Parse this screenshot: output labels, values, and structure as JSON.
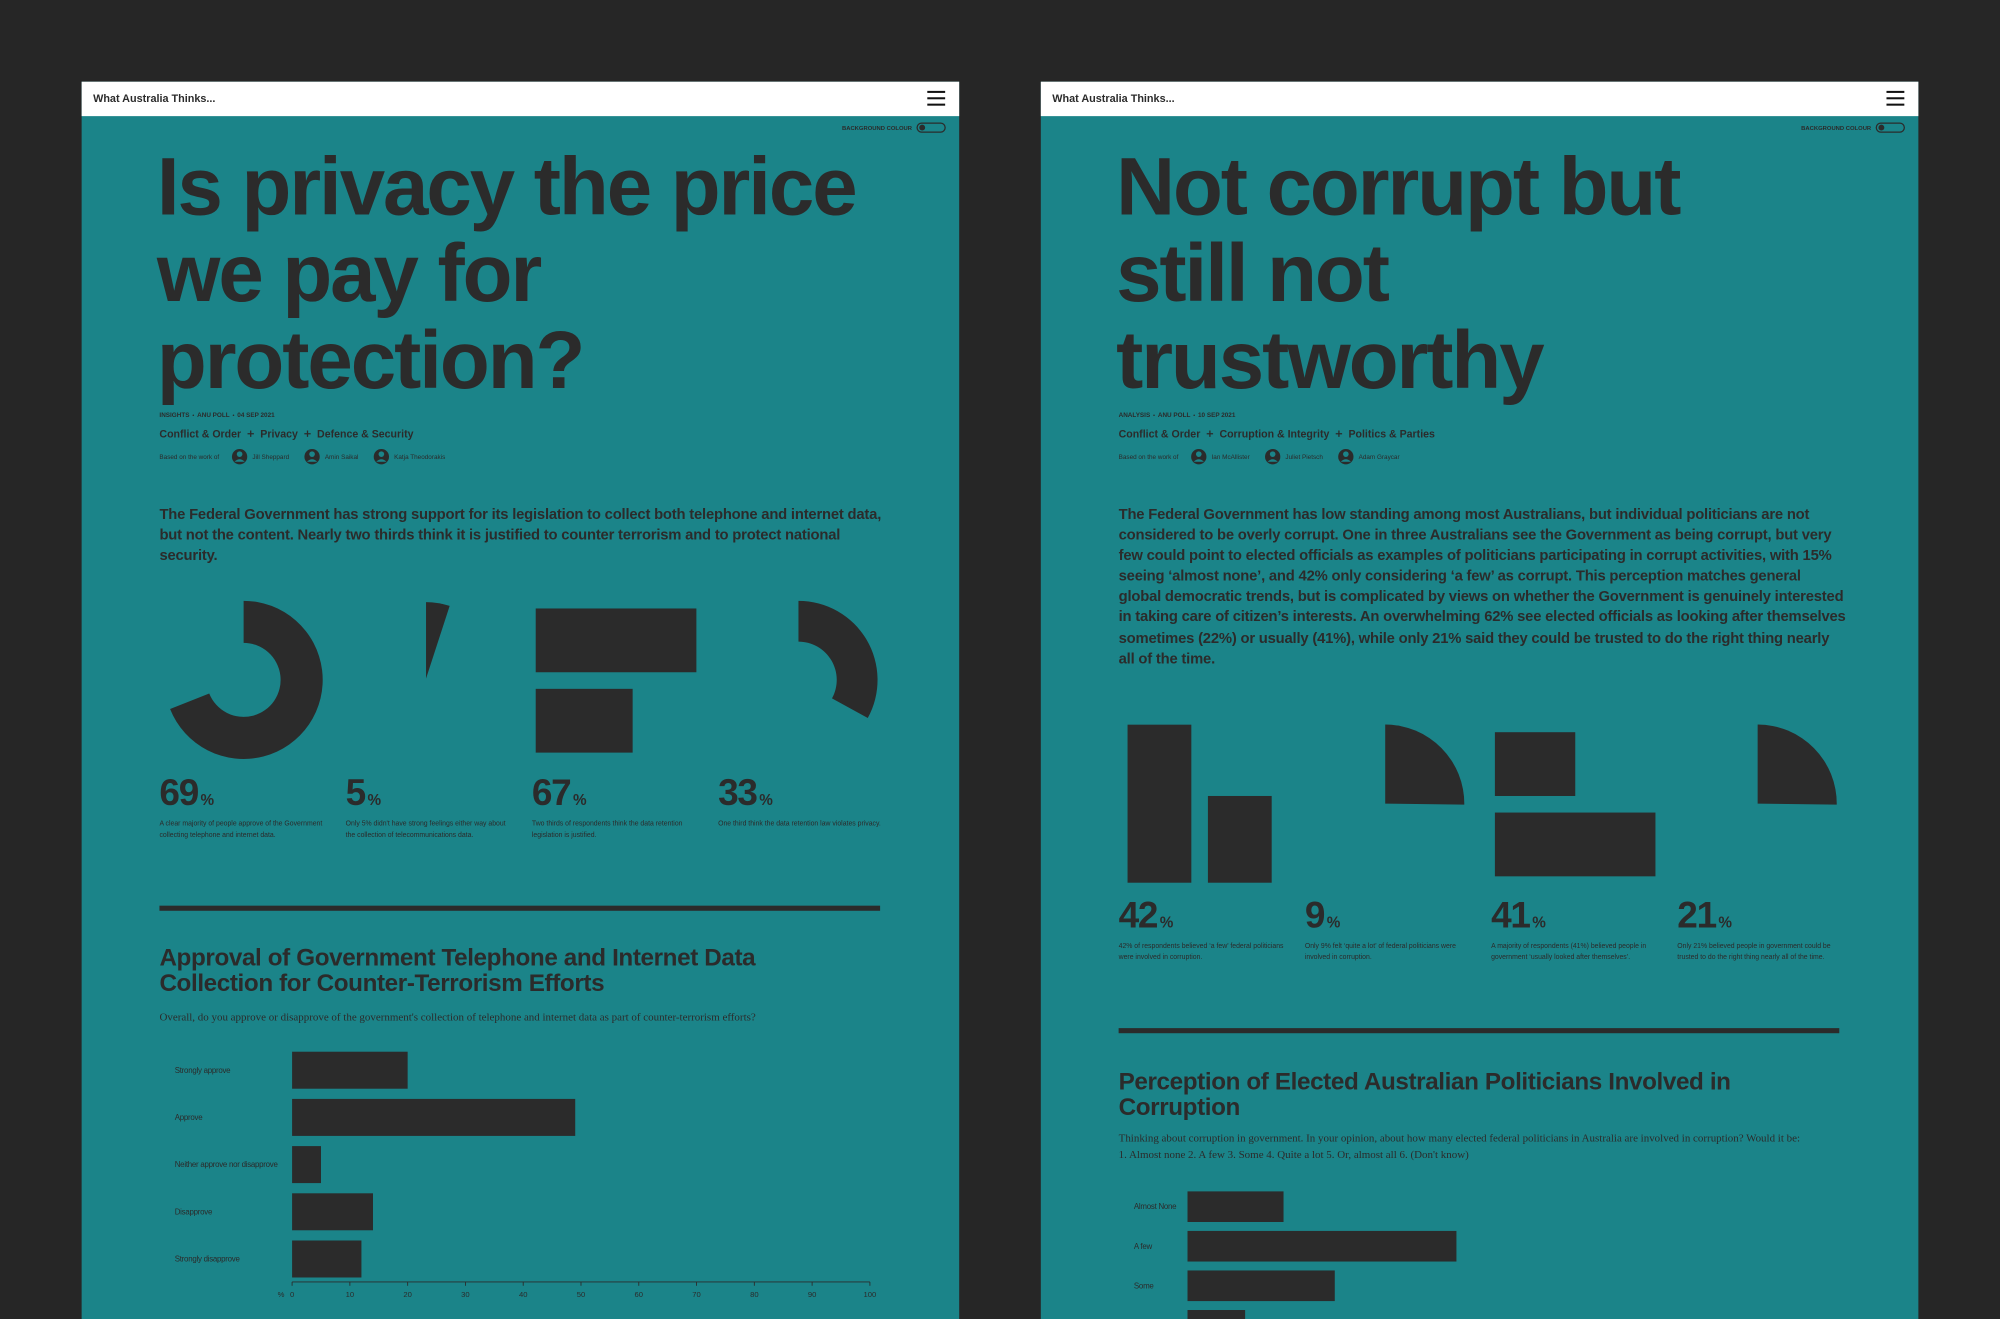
{
  "pages": [
    {
      "brand": "What Australia Thinks...",
      "toggle_label": "BACKGROUND COLOUR",
      "title_lines": [
        "Is privacy the price",
        "we pay for",
        "protection?"
      ],
      "meta": [
        "INSIGHTS",
        "ANU POLL",
        "04 SEP 2021"
      ],
      "tags": [
        "Conflict & Order",
        "Privacy",
        "Defence & Security"
      ],
      "authors_label": "Based on the work of",
      "authors": [
        "Jill Sheppard",
        "Amin Saikal",
        "Katja Theodorakis"
      ],
      "lead": "The Federal Government has strong support for its legislation to collect both telephone and internet data, but not the content. Nearly two thirds think it is justified to counter terrorism and to protect national security.",
      "stats": [
        {
          "value": 69,
          "unit": "%",
          "text": "A clear majority of people approve of the Government collecting telephone and internet data."
        },
        {
          "value": 5,
          "unit": "%",
          "text": "Only 5% didn't have strong feelings either way about the collection of telecommunications data."
        },
        {
          "value": 67,
          "unit": "%",
          "text": "Two thirds of respondents think the data retention legislation is justified."
        },
        {
          "value": 33,
          "unit": "%",
          "text": "One third think the data retention law violates privacy."
        }
      ],
      "chart_data": {
        "type": "bar",
        "orientation": "horizontal",
        "title": "Approval of Government Telephone and Internet Data Collection for Counter-Terrorism Efforts",
        "subtitle": "Overall, do you approve or disapprove of the government's collection of telephone and internet data as part of counter-terrorism efforts?",
        "categories": [
          "Strongly approve",
          "Approve",
          "Neither approve nor disapprove",
          "Disapprove",
          "Strongly disapprove"
        ],
        "values": [
          20,
          49,
          5,
          14,
          12
        ],
        "color": "#2b2b2b",
        "xlabel": "%",
        "xlim": [
          0,
          100
        ],
        "xticks": [
          0,
          10,
          20,
          30,
          40,
          50,
          60,
          70,
          80,
          90,
          100
        ]
      }
    },
    {
      "brand": "What Australia Thinks...",
      "toggle_label": "BACKGROUND COLOUR",
      "title_lines": [
        "Not corrupt but",
        "still not",
        "trustworthy"
      ],
      "meta": [
        "ANALYSIS",
        "ANU POLL",
        "10 SEP 2021"
      ],
      "tags": [
        "Conflict & Order",
        "Corruption & Integrity",
        "Politics & Parties"
      ],
      "authors_label": "Based on the work of",
      "authors": [
        "Ian McAllister",
        "Juliet Pietsch",
        "Adam Graycar"
      ],
      "lead": "The Federal Government has low standing among most Australians, but individual politicians are not considered to be overly corrupt. One in three Australians see the Government as being corrupt, but very few could point to elected officials as examples of politicians participating in corrupt activities, with 15% seeing ‘almost none’, and 42% only considering ‘a few’ as corrupt. This perception matches general global democratic trends, but is complicated by views on whether the Government is genuinely interested in taking care of citizen’s interests. An overwhelming 62% see elected officials as looking after themselves sometimes (22%) or usually (41%), while only 21% said they could be trusted to do the right thing nearly all of the time.",
      "stats": [
        {
          "value": 42,
          "unit": "%",
          "text": "42% of respondents believed ‘a few’ federal politicians were involved in corruption."
        },
        {
          "value": 9,
          "unit": "%",
          "text": "Only 9% felt ‘quite a lot’ of federal politicians were involved in corruption."
        },
        {
          "value": 41,
          "unit": "%",
          "text": "A majority of respondents (41%) believed people in government ‘usually looked after themselves’."
        },
        {
          "value": 21,
          "unit": "%",
          "text": "Only 21% believed people in government could be trusted to do the right thing nearly all of the time."
        }
      ],
      "chart_data": {
        "type": "bar",
        "orientation": "horizontal",
        "title": "Perception of Elected Australian Politicians Involved in Corruption",
        "subtitle": "Thinking about corruption in government. In your opinion, about how many elected federal politicians in Australia are involved in corruption? Would it be: 1. Almost none 2. A few 3. Some 4. Quite a lot 5. Or, almost all 6. (Don't know)",
        "categories": [
          "Almost None",
          "A few",
          "Some",
          null
        ],
        "values": [
          15,
          42,
          23,
          9
        ],
        "color": "#2b2b2b",
        "xlim": [
          0,
          100
        ]
      }
    }
  ]
}
